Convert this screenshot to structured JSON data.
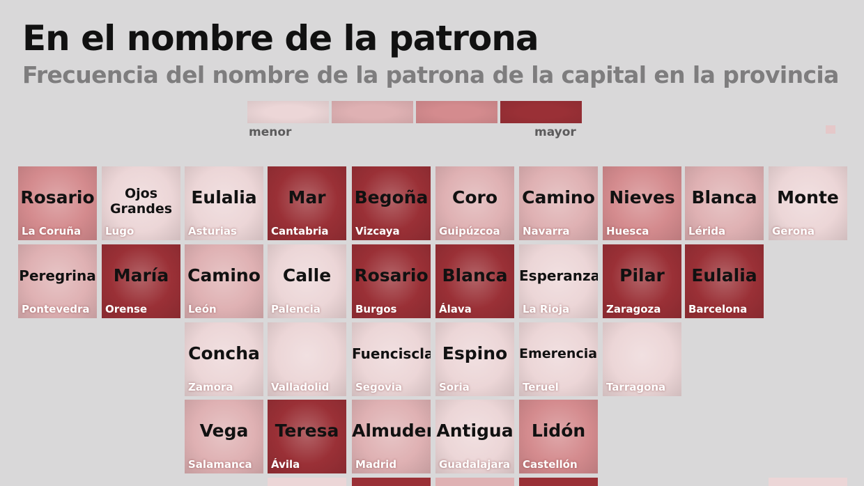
{
  "title": "En el nombre de la patrona",
  "subtitle": "Frecuencia del nombre de la patrona de la capital en la provincia",
  "legend": {
    "min_label": "menor",
    "max_label": "mayor",
    "colors": [
      "#ecd6d7",
      "#dfb1b3",
      "#d48b8e",
      "#9a3036"
    ]
  },
  "chart_data": {
    "type": "heatmap",
    "title": "En el nombre de la patrona",
    "subtitle": "Frecuencia del nombre de la patrona de la capital en la provincia",
    "scale": [
      "menor",
      "mayor"
    ],
    "cells": [
      {
        "name": "Rosario",
        "province": "La Coruña",
        "row": 0,
        "col": 0,
        "level": 2
      },
      {
        "name": "Ojos Grandes",
        "province": "Lugo",
        "row": 0,
        "col": 1,
        "level": 0
      },
      {
        "name": "Eulalia",
        "province": "Asturias",
        "row": 0,
        "col": 2,
        "level": 0
      },
      {
        "name": "Mar",
        "province": "Cantabria",
        "row": 0,
        "col": 3,
        "level": 3
      },
      {
        "name": "Begoña",
        "province": "Vizcaya",
        "row": 0,
        "col": 4,
        "level": 3
      },
      {
        "name": "Coro",
        "province": "Guipúzcoa",
        "row": 0,
        "col": 5,
        "level": 1
      },
      {
        "name": "Camino",
        "province": "Navarra",
        "row": 0,
        "col": 6,
        "level": 1
      },
      {
        "name": "Nieves",
        "province": "Huesca",
        "row": 0,
        "col": 7,
        "level": 2
      },
      {
        "name": "Blanca",
        "province": "Lérida",
        "row": 0,
        "col": 8,
        "level": 1
      },
      {
        "name": "Monte",
        "province": "Gerona",
        "row": 0,
        "col": 9,
        "level": 0
      },
      {
        "name": "Peregrina",
        "province": "Pontevedra",
        "row": 1,
        "col": 0,
        "level": 1
      },
      {
        "name": "María",
        "province": "Orense",
        "row": 1,
        "col": 1,
        "level": 3
      },
      {
        "name": "Camino",
        "province": "León",
        "row": 1,
        "col": 2,
        "level": 1
      },
      {
        "name": "Calle",
        "province": "Palencia",
        "row": 1,
        "col": 3,
        "level": 0
      },
      {
        "name": "Rosario",
        "province": "Burgos",
        "row": 1,
        "col": 4,
        "level": 3
      },
      {
        "name": "Blanca",
        "province": "Álava",
        "row": 1,
        "col": 5,
        "level": 3
      },
      {
        "name": "Esperanza",
        "province": "La Rioja",
        "row": 1,
        "col": 6,
        "level": 0
      },
      {
        "name": "Pilar",
        "province": "Zaragoza",
        "row": 1,
        "col": 7,
        "level": 3
      },
      {
        "name": "Eulalia",
        "province": "Barcelona",
        "row": 1,
        "col": 8,
        "level": 3
      },
      {
        "name": "Concha",
        "province": "Zamora",
        "row": 2,
        "col": 2,
        "level": 0
      },
      {
        "name": "",
        "province": "Valladolid",
        "row": 2,
        "col": 3,
        "level": 0
      },
      {
        "name": "Fuenciscla",
        "province": "Segovia",
        "row": 2,
        "col": 4,
        "level": 0
      },
      {
        "name": "Espino",
        "province": "Soria",
        "row": 2,
        "col": 5,
        "level": 0
      },
      {
        "name": "Emerenciana",
        "province": "Teruel",
        "row": 2,
        "col": 6,
        "level": 0
      },
      {
        "name": "",
        "province": "Tarragona",
        "row": 2,
        "col": 7,
        "level": 0
      },
      {
        "name": "Vega",
        "province": "Salamanca",
        "row": 3,
        "col": 2,
        "level": 1
      },
      {
        "name": "Teresa",
        "province": "Ávila",
        "row": 3,
        "col": 3,
        "level": 3
      },
      {
        "name": "Almudena",
        "province": "Madrid",
        "row": 3,
        "col": 4,
        "level": 1
      },
      {
        "name": "Antigua",
        "province": "Guadalajara",
        "row": 3,
        "col": 5,
        "level": 0
      },
      {
        "name": "Lidón",
        "province": "Castellón",
        "row": 3,
        "col": 6,
        "level": 2
      }
    ]
  }
}
